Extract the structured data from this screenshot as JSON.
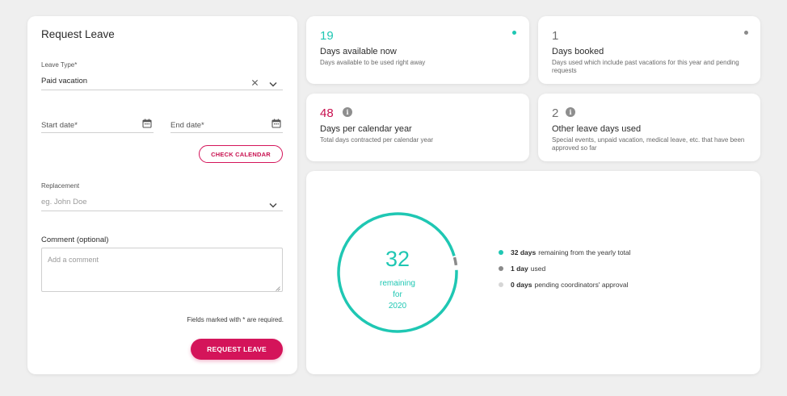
{
  "form": {
    "title": "Request Leave",
    "leave_type_label": "Leave Type",
    "leave_type_value": "Paid vacation",
    "start_date_label": "Start date",
    "end_date_label": "End date",
    "check_calendar_label": "CHECK CALENDAR",
    "replacement_label": "Replacement",
    "replacement_placeholder": "eg. John Doe",
    "comment_label": "Comment (optional)",
    "comment_placeholder": "Add a comment",
    "required_note": "Fields marked with * are required.",
    "request_button_label": "REQUEST LEAVE",
    "required_marker": "*"
  },
  "stats": {
    "available": {
      "value": "19",
      "title": "Days available now",
      "desc": "Days available to be used right away",
      "color": "#1fc7b3"
    },
    "booked": {
      "value": "1",
      "title": "Days booked",
      "desc": "Days used which include past vacations for this year and pending requests",
      "color": "#6f6f6f"
    },
    "per_year": {
      "value": "48",
      "title": "Days per calendar year",
      "desc": "Total days contracted per calendar year",
      "color": "#c8104f"
    },
    "other": {
      "value": "2",
      "title": "Other leave days used",
      "desc": "Special events, unpaid vacation, medical leave, etc. that have been approved so far",
      "color": "#6f6f6f"
    }
  },
  "summary": {
    "center_value": "32",
    "center_line1": "remaining",
    "center_line2": "for",
    "center_line3": "2020",
    "legend": [
      {
        "bold": "32 days",
        "text": "remaining from the yearly total",
        "color": "#1fc7b3"
      },
      {
        "bold": "1 day",
        "text": "used",
        "color": "#8a8a8a"
      },
      {
        "bold": "0 days",
        "text": "pending coordinators' approval",
        "color": "#d6d6d6"
      }
    ],
    "remaining_days": 32,
    "used_days": 1,
    "pending_days": 0,
    "total_days": 33
  },
  "colors": {
    "accent": "#d4145a",
    "teal": "#1fc7b3",
    "gray": "#8a8a8a"
  }
}
